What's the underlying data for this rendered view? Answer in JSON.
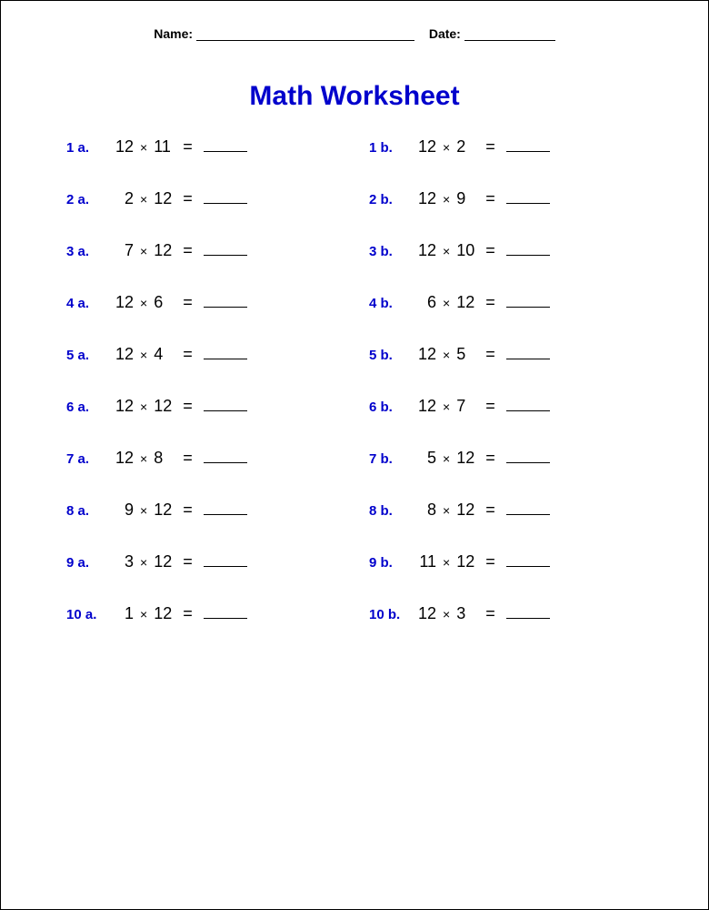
{
  "header": {
    "name_label": "Name:",
    "date_label": "Date:"
  },
  "title": {
    "text": "Math Worksheet",
    "color": "#0000cc"
  },
  "label_color": "#0000cc",
  "text_color": "#000000",
  "operator_symbol": "×",
  "equals_symbol": "=",
  "problems": [
    {
      "a": {
        "label": "1 a.",
        "op1": "12",
        "op2": "11"
      },
      "b": {
        "label": "1 b.",
        "op1": "12",
        "op2": "2"
      }
    },
    {
      "a": {
        "label": "2 a.",
        "op1": "2",
        "op2": "12"
      },
      "b": {
        "label": "2 b.",
        "op1": "12",
        "op2": "9"
      }
    },
    {
      "a": {
        "label": "3 a.",
        "op1": "7",
        "op2": "12"
      },
      "b": {
        "label": "3 b.",
        "op1": "12",
        "op2": "10"
      }
    },
    {
      "a": {
        "label": "4 a.",
        "op1": "12",
        "op2": "6"
      },
      "b": {
        "label": "4 b.",
        "op1": "6",
        "op2": "12"
      }
    },
    {
      "a": {
        "label": "5 a.",
        "op1": "12",
        "op2": "4"
      },
      "b": {
        "label": "5 b.",
        "op1": "12",
        "op2": "5"
      }
    },
    {
      "a": {
        "label": "6 a.",
        "op1": "12",
        "op2": "12"
      },
      "b": {
        "label": "6 b.",
        "op1": "12",
        "op2": "7"
      }
    },
    {
      "a": {
        "label": "7 a.",
        "op1": "12",
        "op2": "8"
      },
      "b": {
        "label": "7 b.",
        "op1": "5",
        "op2": "12"
      }
    },
    {
      "a": {
        "label": "8 a.",
        "op1": "9",
        "op2": "12"
      },
      "b": {
        "label": "8 b.",
        "op1": "8",
        "op2": "12"
      }
    },
    {
      "a": {
        "label": "9 a.",
        "op1": "3",
        "op2": "12"
      },
      "b": {
        "label": "9 b.",
        "op1": "11",
        "op2": "12"
      }
    },
    {
      "a": {
        "label": "10 a.",
        "op1": "1",
        "op2": "12"
      },
      "b": {
        "label": "10 b.",
        "op1": "12",
        "op2": "3"
      }
    }
  ]
}
